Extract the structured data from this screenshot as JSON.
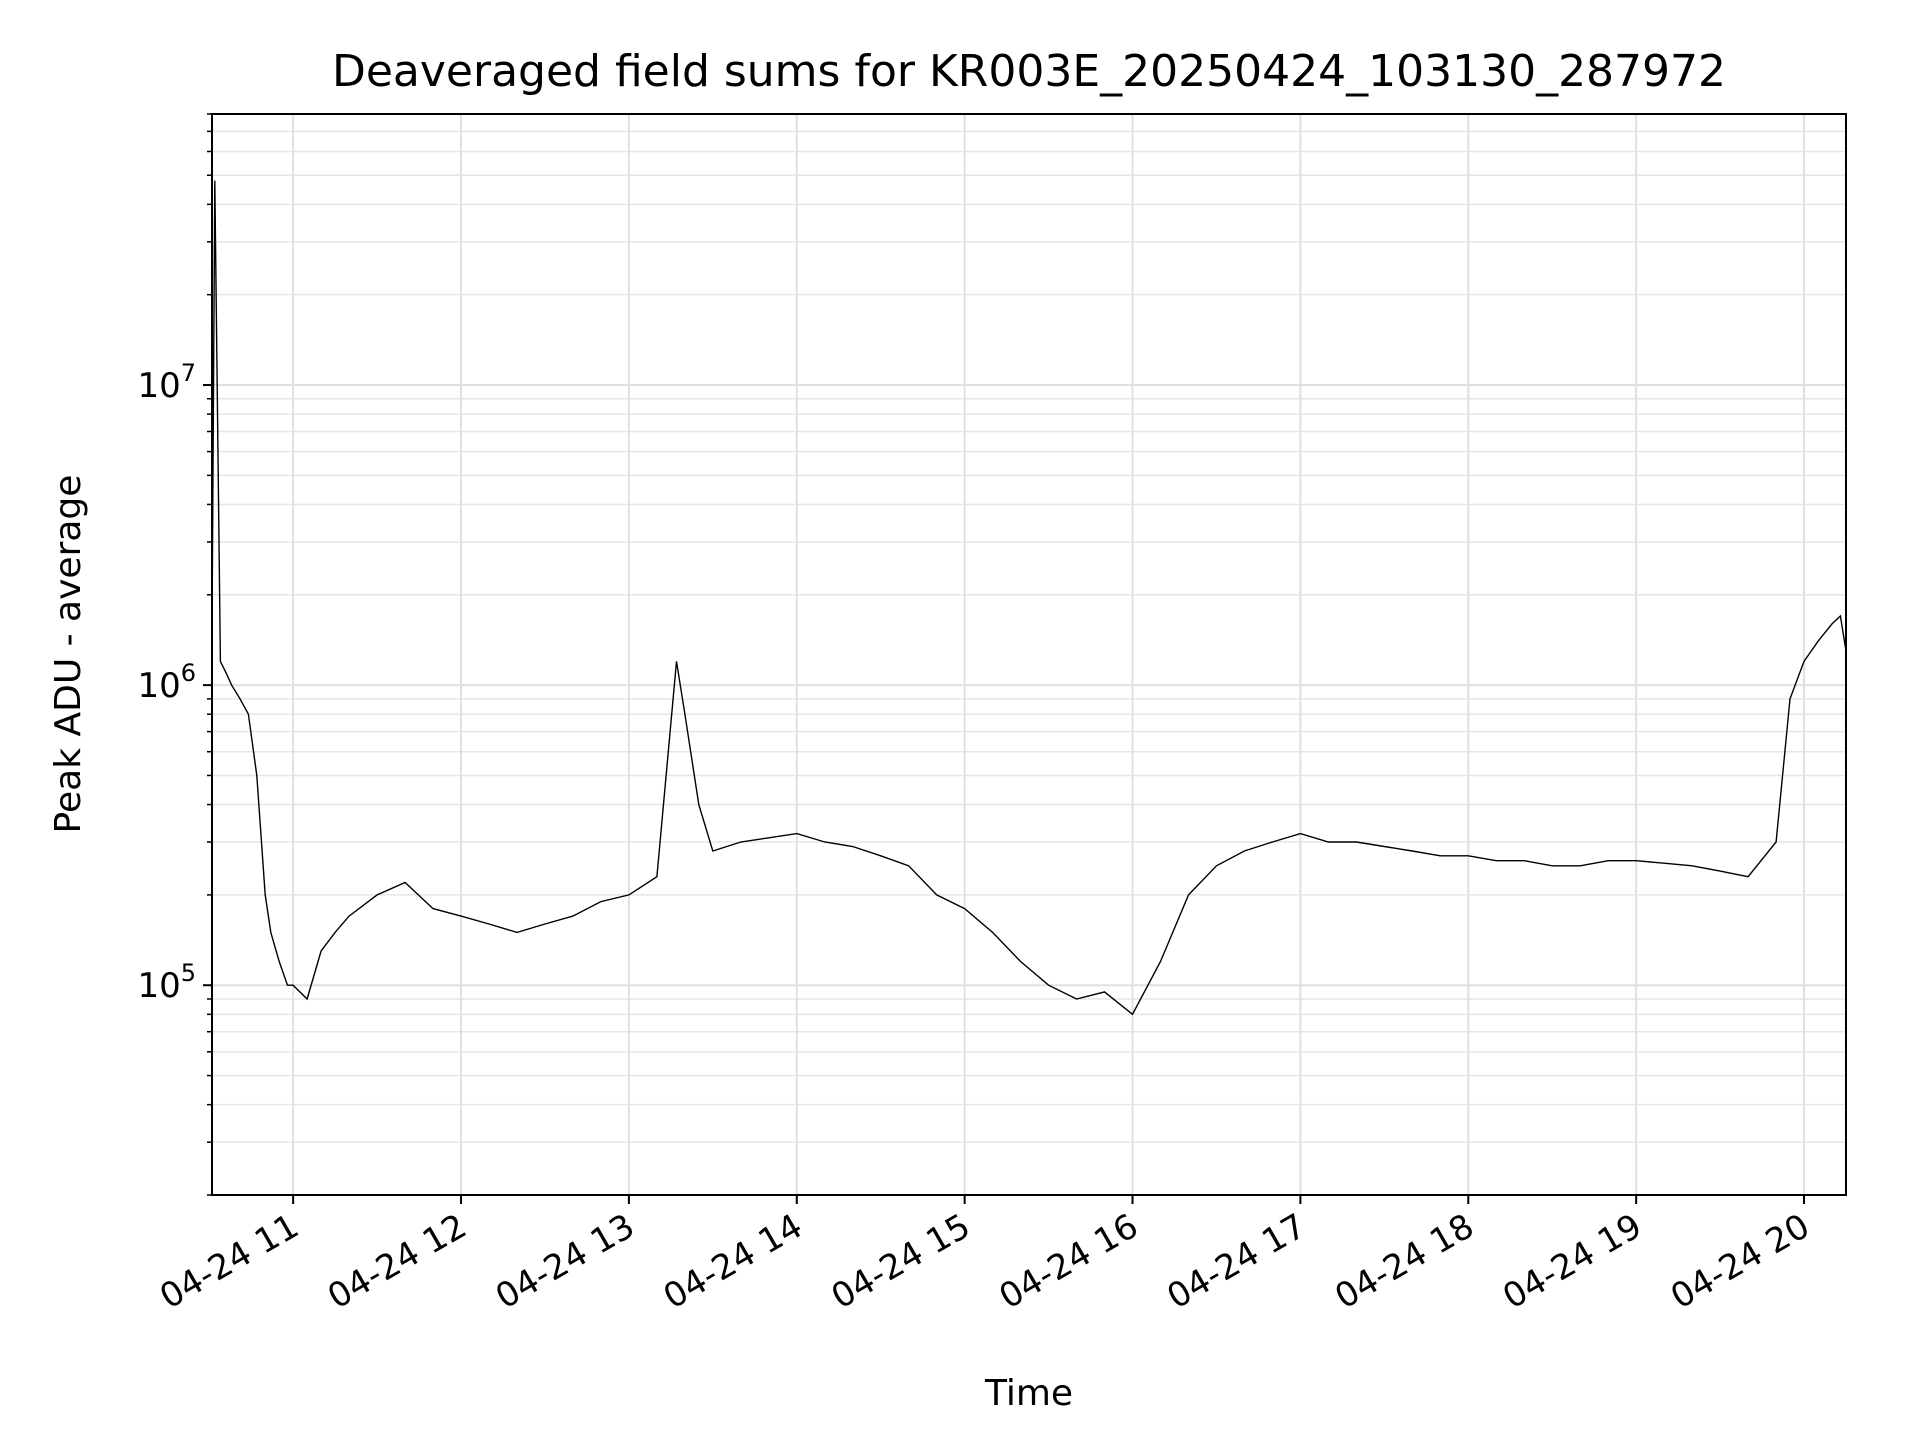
{
  "chart_data": {
    "type": "line",
    "title": "Deaveraged field sums for KR003E_20250424_103130_287972",
    "xlabel": "Time",
    "ylabel": "Peak ADU - average",
    "y_scale": "log",
    "grid": true,
    "minor_grid": true,
    "line_color": "#000000",
    "xlim": [
      "2025-04-24 10:31",
      "2025-04-24 20:15"
    ],
    "ylim": [
      20000,
      80000000
    ],
    "x_ticks": [
      "04-24 11",
      "04-24 12",
      "04-24 13",
      "04-24 14",
      "04-24 15",
      "04-24 16",
      "04-24 17",
      "04-24 18",
      "04-24 19",
      "04-24 20"
    ],
    "y_ticks": [
      {
        "base": "10",
        "exp": "5",
        "value": 100000
      },
      {
        "base": "10",
        "exp": "6",
        "value": 1000000
      },
      {
        "base": "10",
        "exp": "7",
        "value": 10000000
      }
    ],
    "series": [
      {
        "x": [
          "10:31",
          "10:32",
          "10:34",
          "10:36",
          "10:38",
          "10:41",
          "10:44",
          "10:47",
          "10:50",
          "10:52",
          "10:55",
          "10:58",
          "11:00",
          "11:05",
          "11:10",
          "11:15",
          "11:20",
          "11:30",
          "11:40",
          "11:50",
          "12:00",
          "12:10",
          "12:20",
          "12:30",
          "12:40",
          "12:50",
          "13:00",
          "13:10",
          "13:17",
          "13:20",
          "13:25",
          "13:30",
          "13:40",
          "13:50",
          "14:00",
          "14:10",
          "14:20",
          "14:30",
          "14:40",
          "14:50",
          "15:00",
          "15:10",
          "15:20",
          "15:30",
          "15:40",
          "15:50",
          "16:00",
          "16:10",
          "16:20",
          "16:30",
          "16:40",
          "16:50",
          "17:00",
          "17:10",
          "17:20",
          "17:30",
          "17:40",
          "17:50",
          "18:00",
          "18:10",
          "18:20",
          "18:30",
          "18:40",
          "18:50",
          "19:00",
          "19:10",
          "19:20",
          "19:30",
          "19:40",
          "19:50",
          "19:55",
          "20:00",
          "20:05",
          "20:10",
          "20:13",
          "20:15"
        ],
        "y": [
          1500000,
          48000000,
          1200000,
          1100000,
          1000000,
          900000,
          800000,
          500000,
          200000,
          150000,
          120000,
          100000,
          100000,
          90000,
          130000,
          150000,
          170000,
          200000,
          220000,
          180000,
          170000,
          160000,
          150000,
          160000,
          170000,
          190000,
          200000,
          230000,
          1200000,
          800000,
          400000,
          280000,
          300000,
          310000,
          320000,
          300000,
          290000,
          270000,
          250000,
          200000,
          180000,
          150000,
          120000,
          100000,
          90000,
          95000,
          80000,
          120000,
          200000,
          250000,
          280000,
          300000,
          320000,
          300000,
          300000,
          290000,
          280000,
          270000,
          270000,
          260000,
          260000,
          250000,
          250000,
          260000,
          260000,
          255000,
          250000,
          240000,
          230000,
          300000,
          900000,
          1200000,
          1400000,
          1600000,
          1700000,
          1300000
        ]
      }
    ]
  }
}
